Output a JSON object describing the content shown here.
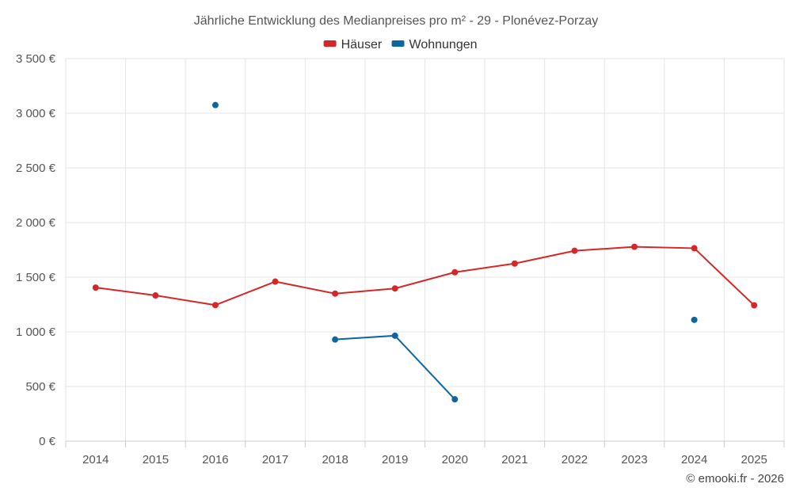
{
  "chart_data": {
    "type": "line",
    "title": "Jährliche Entwicklung des Medianpreises pro m² - 29 - Plonévez-Porzay",
    "categories": [
      "2014",
      "2015",
      "2016",
      "2017",
      "2018",
      "2019",
      "2020",
      "2021",
      "2022",
      "2023",
      "2024",
      "2025"
    ],
    "ylim": [
      0,
      3500
    ],
    "yticks": [
      0,
      500,
      1000,
      1500,
      2000,
      2500,
      3000,
      3500
    ],
    "ytick_labels": [
      "0 €",
      "500 €",
      "1 000 €",
      "1 500 €",
      "2 000 €",
      "2 500 €",
      "3 000 €",
      "3 500 €"
    ],
    "legend_position": "top-center",
    "grid": true,
    "series": [
      {
        "name": "Häuser",
        "color": "#d62728",
        "values": [
          1405,
          1333,
          1245,
          1460,
          1350,
          1397,
          1545,
          1625,
          1742,
          1778,
          1765,
          1243
        ]
      },
      {
        "name": "Wohnungen",
        "color": "#0d66a0",
        "values": [
          null,
          null,
          3075,
          null,
          930,
          965,
          383,
          null,
          null,
          null,
          1110,
          null
        ]
      }
    ]
  },
  "credit": "© emooki.fr - 2026"
}
